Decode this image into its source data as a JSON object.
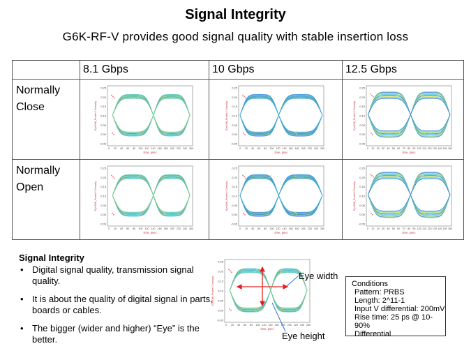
{
  "title": "Signal Integrity",
  "subtitle": "G6K-RF-V provides good signal quality with stable insertion loss",
  "table": {
    "columns": [
      "8.1 Gbps",
      "10 Gbps",
      "12.5 Gbps"
    ],
    "rows": [
      {
        "label_line1": "Normally",
        "label_line2": "Close"
      },
      {
        "label_line1": "Normally",
        "label_line2": "Open"
      }
    ]
  },
  "eye_plot": {
    "ylabel": "EyeDiff_Probe2.Density",
    "xlabel": "time, psec",
    "xticks_full": [
      "0",
      "20",
      "40",
      "60",
      "80",
      "100",
      "120",
      "140",
      "160",
      "180",
      "200",
      "220",
      "240",
      "260"
    ],
    "xticks_short": [
      "0",
      "10",
      "20",
      "30",
      "40",
      "50",
      "60",
      "70",
      "80",
      "90",
      "100",
      "110",
      "120",
      "130",
      "140",
      "150",
      "160"
    ],
    "yticks": [
      "0.25",
      "0.20",
      "0.15",
      "0.10",
      "0.05",
      "0.00",
      "-0.05"
    ],
    "colors": {
      "cyan": "#46c8e0",
      "blue": "#2a5fd6",
      "green": "#7fd66a",
      "yellow": "#e8e04a",
      "red": "#e04848"
    }
  },
  "notes": {
    "heading": "Signal Integrity",
    "bullets": [
      "Digital signal quality, transmission signal quality.",
      "It is about the quality of digital signal in parts, boards or cables.",
      "The bigger (wider and higher) “Eye” is the better."
    ],
    "bullet_symbol": "•"
  },
  "demo": {
    "eye_width_label": "Eye width",
    "eye_height_label": "Eye height",
    "arrow_color": "#e02020"
  },
  "conditions": {
    "heading": "Conditions",
    "lines": [
      "Pattern: PRBS",
      "Length: 2^11-1",
      "Input V differential: 200mV",
      "Rise time: 25 ps @ 10-90%",
      "Differential"
    ]
  }
}
